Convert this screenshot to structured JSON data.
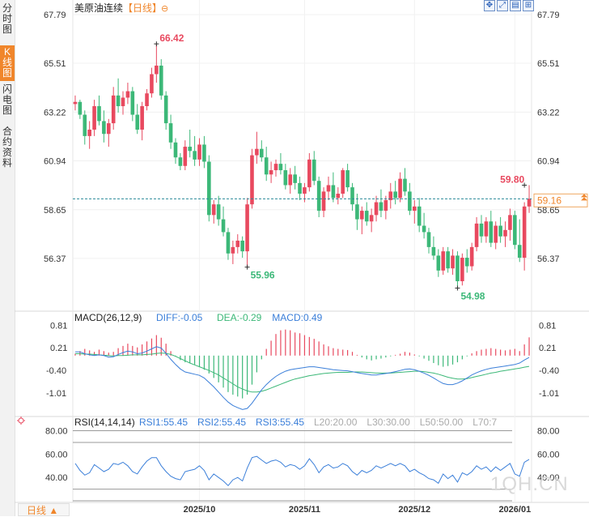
{
  "sidebar": {
    "tabs": [
      {
        "label": "分时图",
        "active": false
      },
      {
        "label": "K线图",
        "active": true
      },
      {
        "label": "闪电图",
        "active": false
      },
      {
        "label": "合约资料",
        "active": false
      }
    ]
  },
  "header": {
    "title": "美原油连续",
    "period_tag": "【日线】",
    "zoom_icon": "zoom-icon"
  },
  "toolbar": {
    "icons": [
      "move-icon",
      "expand-icon",
      "chart-settings-icon",
      "layout-icon"
    ]
  },
  "footer": {
    "period_button": "日线 ▲",
    "watermark": "1QH.CN"
  },
  "colors": {
    "up": "#e8495f",
    "down": "#3cb878",
    "diff_line": "#3b7fd9",
    "dea_line": "#3cb878",
    "rsi_line": "#3b7fd9",
    "accent": "#f0862b"
  },
  "chart_data": [
    {
      "type": "candlestick",
      "name": "main",
      "y_ticks": [
        "67.79",
        "65.51",
        "63.22",
        "60.94",
        "58.65",
        "56.37"
      ],
      "ylim": [
        54.2,
        67.79
      ],
      "x_labels": [
        {
          "label": "2025/10",
          "index": 26
        },
        {
          "label": "2025/11",
          "index": 48
        },
        {
          "label": "2025/12",
          "index": 71
        },
        {
          "label": "2026/01",
          "index": 92
        }
      ],
      "last_price": "59.16",
      "annotations": [
        {
          "label": "66.42",
          "index": 17,
          "value": 66.42,
          "kind": "high"
        },
        {
          "label": "55.96",
          "index": 36,
          "value": 55.96,
          "kind": "low"
        },
        {
          "label": "54.98",
          "index": 80,
          "value": 54.98,
          "kind": "low"
        },
        {
          "label": "59.80",
          "index": 94,
          "value": 59.8,
          "kind": "high"
        }
      ],
      "candles": [
        [
          63.6,
          64.0,
          63.3,
          63.7
        ],
        [
          63.7,
          63.8,
          62.9,
          63.1
        ],
        [
          63.1,
          63.3,
          61.7,
          62.1
        ],
        [
          62.1,
          62.8,
          61.5,
          62.4
        ],
        [
          62.4,
          63.8,
          62.1,
          63.5
        ],
        [
          63.5,
          64.0,
          62.6,
          62.8
        ],
        [
          62.8,
          63.3,
          61.8,
          62.2
        ],
        [
          62.2,
          62.9,
          61.6,
          62.7
        ],
        [
          62.7,
          64.4,
          62.4,
          64.0
        ],
        [
          64.0,
          64.8,
          63.2,
          63.5
        ],
        [
          63.5,
          64.2,
          63.1,
          63.9
        ],
        [
          63.9,
          64.6,
          63.6,
          64.2
        ],
        [
          64.2,
          64.4,
          62.8,
          63.1
        ],
        [
          63.1,
          63.6,
          62.2,
          62.4
        ],
        [
          62.4,
          63.7,
          61.9,
          63.5
        ],
        [
          63.5,
          64.3,
          63.3,
          64.1
        ],
        [
          64.1,
          65.3,
          63.9,
          65.0
        ],
        [
          65.0,
          66.42,
          64.6,
          65.4
        ],
        [
          65.4,
          65.7,
          63.8,
          64.0
        ],
        [
          64.0,
          64.2,
          62.4,
          62.7
        ],
        [
          62.7,
          63.1,
          61.5,
          61.8
        ],
        [
          61.8,
          62.0,
          60.8,
          61.1
        ],
        [
          61.1,
          61.3,
          60.5,
          60.7
        ],
        [
          60.7,
          61.9,
          60.5,
          61.6
        ],
        [
          61.6,
          62.4,
          61.1,
          61.4
        ],
        [
          61.4,
          62.1,
          60.7,
          61.0
        ],
        [
          61.0,
          62.0,
          60.7,
          61.7
        ],
        [
          61.7,
          62.1,
          60.6,
          60.9
        ],
        [
          60.9,
          61.2,
          58.1,
          58.4
        ],
        [
          58.4,
          59.1,
          58.0,
          58.9
        ],
        [
          58.9,
          59.3,
          57.9,
          58.2
        ],
        [
          58.2,
          58.8,
          57.4,
          57.6
        ],
        [
          57.6,
          57.8,
          56.3,
          56.6
        ],
        [
          56.6,
          57.2,
          56.1,
          56.9
        ],
        [
          56.9,
          57.5,
          56.6,
          57.2
        ],
        [
          57.2,
          57.4,
          56.4,
          56.7
        ],
        [
          56.7,
          59.2,
          55.96,
          58.9
        ],
        [
          58.9,
          61.5,
          58.7,
          61.2
        ],
        [
          61.2,
          62.3,
          60.8,
          61.5
        ],
        [
          61.5,
          61.9,
          60.9,
          61.1
        ],
        [
          61.1,
          61.6,
          60.0,
          60.3
        ],
        [
          60.3,
          60.9,
          59.9,
          60.5
        ],
        [
          60.5,
          61.0,
          60.2,
          60.8
        ],
        [
          60.8,
          61.3,
          60.3,
          60.5
        ],
        [
          60.5,
          60.8,
          59.6,
          59.8
        ],
        [
          59.8,
          60.6,
          59.4,
          60.3
        ],
        [
          60.3,
          60.7,
          59.6,
          59.9
        ],
        [
          59.9,
          60.2,
          59.1,
          59.4
        ],
        [
          59.4,
          59.9,
          59.0,
          59.7
        ],
        [
          59.7,
          61.3,
          59.5,
          61.0
        ],
        [
          61.0,
          61.4,
          59.8,
          60.0
        ],
        [
          60.0,
          60.2,
          58.3,
          58.6
        ],
        [
          58.6,
          59.7,
          58.3,
          59.5
        ],
        [
          59.5,
          60.2,
          59.1,
          59.8
        ],
        [
          59.8,
          60.4,
          59.0,
          59.2
        ],
        [
          59.2,
          59.7,
          58.9,
          59.4
        ],
        [
          59.4,
          60.6,
          59.2,
          60.5
        ],
        [
          60.5,
          60.8,
          59.5,
          59.7
        ],
        [
          59.7,
          59.9,
          58.6,
          58.9
        ],
        [
          58.9,
          59.4,
          57.7,
          58.2
        ],
        [
          58.2,
          58.8,
          57.5,
          58.6
        ],
        [
          58.6,
          59.0,
          57.9,
          58.1
        ],
        [
          58.1,
          58.7,
          57.6,
          58.4
        ],
        [
          58.4,
          59.3,
          58.1,
          59.0
        ],
        [
          59.0,
          59.6,
          58.3,
          58.6
        ],
        [
          58.6,
          59.3,
          58.2,
          59.1
        ],
        [
          59.1,
          59.9,
          58.7,
          59.5
        ],
        [
          59.5,
          60.0,
          58.9,
          59.2
        ],
        [
          59.2,
          60.4,
          59.0,
          60.1
        ],
        [
          60.1,
          60.6,
          59.3,
          59.5
        ],
        [
          59.5,
          59.9,
          58.4,
          58.6
        ],
        [
          58.6,
          59.1,
          58.0,
          58.8
        ],
        [
          58.8,
          59.2,
          57.6,
          57.9
        ],
        [
          57.9,
          58.5,
          57.3,
          57.6
        ],
        [
          57.6,
          57.8,
          56.6,
          56.9
        ],
        [
          56.9,
          57.4,
          56.3,
          56.5
        ],
        [
          56.5,
          56.8,
          55.5,
          55.8
        ],
        [
          55.8,
          56.9,
          55.6,
          56.7
        ],
        [
          56.7,
          56.9,
          55.7,
          55.9
        ],
        [
          55.9,
          56.8,
          55.6,
          56.5
        ],
        [
          56.5,
          56.7,
          54.98,
          55.3
        ],
        [
          55.3,
          56.6,
          55.1,
          56.4
        ],
        [
          56.4,
          56.8,
          55.7,
          56.0
        ],
        [
          56.0,
          57.1,
          55.8,
          56.9
        ],
        [
          56.9,
          58.3,
          56.7,
          58.0
        ],
        [
          58.0,
          58.4,
          57.1,
          57.4
        ],
        [
          57.4,
          58.3,
          57.1,
          58.1
        ],
        [
          58.1,
          58.6,
          56.9,
          57.1
        ],
        [
          57.1,
          58.1,
          56.8,
          57.9
        ],
        [
          57.9,
          58.3,
          57.1,
          57.4
        ],
        [
          57.4,
          58.1,
          56.9,
          57.7
        ],
        [
          57.7,
          58.7,
          57.2,
          58.4
        ],
        [
          58.4,
          58.6,
          56.8,
          57.0
        ],
        [
          57.0,
          58.2,
          56.2,
          56.4
        ],
        [
          56.4,
          59.0,
          55.8,
          58.8
        ],
        [
          58.8,
          59.8,
          58.5,
          59.16
        ]
      ]
    },
    {
      "type": "macd",
      "label": "MACD(26,12,9)",
      "legend": [
        {
          "key": "DIFF",
          "text": "DIFF:-0.05"
        },
        {
          "key": "DEA",
          "text": "DEA:-0.29"
        },
        {
          "key": "MACD",
          "text": "MACD:0.49"
        }
      ],
      "y_ticks": [
        "0.81",
        "0.21",
        "-0.40",
        "-1.01"
      ],
      "ylim": [
        -1.55,
        1.15
      ],
      "hist": [
        0.05,
        0.12,
        0.18,
        0.14,
        0.1,
        0.16,
        0.12,
        0.08,
        0.1,
        0.2,
        0.26,
        0.32,
        0.26,
        0.22,
        0.3,
        0.38,
        0.46,
        0.55,
        0.48,
        0.32,
        0.12,
        -0.02,
        -0.12,
        -0.18,
        -0.2,
        -0.24,
        -0.3,
        -0.38,
        -0.48,
        -0.6,
        -0.72,
        -0.86,
        -0.98,
        -1.05,
        -1.1,
        -1.15,
        -1.05,
        -0.78,
        -0.45,
        -0.1,
        0.18,
        0.4,
        0.58,
        0.68,
        0.7,
        0.68,
        0.62,
        0.6,
        0.55,
        0.5,
        0.45,
        0.38,
        0.3,
        0.25,
        0.2,
        0.18,
        0.16,
        0.15,
        0.1,
        0.02,
        -0.05,
        -0.1,
        -0.13,
        -0.1,
        -0.08,
        -0.05,
        -0.02,
        0.02,
        0.05,
        0.1,
        0.08,
        0.03,
        -0.02,
        -0.08,
        -0.14,
        -0.2,
        -0.26,
        -0.3,
        -0.28,
        -0.24,
        -0.18,
        -0.1,
        -0.02,
        0.06,
        0.12,
        0.16,
        0.18,
        0.2,
        0.18,
        0.16,
        0.14,
        0.16,
        0.18,
        0.12,
        0.3,
        0.49
      ],
      "diff": [
        0.1,
        0.1,
        0.05,
        0.02,
        0.0,
        0.02,
        0.0,
        -0.04,
        -0.03,
        0.03,
        0.08,
        0.12,
        0.1,
        0.05,
        0.07,
        0.12,
        0.18,
        0.24,
        0.2,
        0.06,
        -0.1,
        -0.24,
        -0.36,
        -0.44,
        -0.47,
        -0.5,
        -0.53,
        -0.6,
        -0.72,
        -0.84,
        -0.98,
        -1.12,
        -1.25,
        -1.34,
        -1.4,
        -1.45,
        -1.42,
        -1.28,
        -1.1,
        -0.92,
        -0.78,
        -0.66,
        -0.56,
        -0.48,
        -0.42,
        -0.38,
        -0.36,
        -0.34,
        -0.32,
        -0.3,
        -0.3,
        -0.32,
        -0.34,
        -0.36,
        -0.38,
        -0.39,
        -0.4,
        -0.41,
        -0.43,
        -0.46,
        -0.48,
        -0.5,
        -0.52,
        -0.52,
        -0.5,
        -0.48,
        -0.46,
        -0.43,
        -0.4,
        -0.37,
        -0.36,
        -0.38,
        -0.42,
        -0.47,
        -0.53,
        -0.6,
        -0.68,
        -0.75,
        -0.78,
        -0.78,
        -0.74,
        -0.68,
        -0.6,
        -0.52,
        -0.46,
        -0.41,
        -0.37,
        -0.34,
        -0.32,
        -0.3,
        -0.28,
        -0.26,
        -0.24,
        -0.2,
        -0.12,
        -0.05
      ],
      "dea": [
        0.05,
        0.05,
        0.04,
        0.04,
        0.03,
        0.02,
        0.01,
        0.0,
        -0.01,
        0.0,
        0.0,
        0.01,
        0.02,
        0.02,
        0.02,
        0.03,
        0.04,
        0.06,
        0.07,
        0.06,
        0.03,
        -0.02,
        -0.08,
        -0.14,
        -0.2,
        -0.25,
        -0.3,
        -0.35,
        -0.4,
        -0.46,
        -0.52,
        -0.6,
        -0.68,
        -0.76,
        -0.84,
        -0.9,
        -0.95,
        -0.98,
        -0.98,
        -0.96,
        -0.92,
        -0.87,
        -0.82,
        -0.77,
        -0.72,
        -0.67,
        -0.63,
        -0.6,
        -0.57,
        -0.54,
        -0.52,
        -0.5,
        -0.48,
        -0.47,
        -0.46,
        -0.45,
        -0.45,
        -0.45,
        -0.44,
        -0.44,
        -0.44,
        -0.45,
        -0.46,
        -0.47,
        -0.47,
        -0.47,
        -0.47,
        -0.46,
        -0.45,
        -0.44,
        -0.43,
        -0.42,
        -0.42,
        -0.43,
        -0.45,
        -0.47,
        -0.5,
        -0.54,
        -0.58,
        -0.61,
        -0.63,
        -0.63,
        -0.62,
        -0.59,
        -0.56,
        -0.53,
        -0.5,
        -0.47,
        -0.45,
        -0.42,
        -0.4,
        -0.38,
        -0.36,
        -0.34,
        -0.31,
        -0.29
      ]
    },
    {
      "type": "rsi",
      "label": "RSI(14,14,14)",
      "legend": [
        {
          "key": "RSI1",
          "text": "RSI1:55.45"
        },
        {
          "key": "RSI2",
          "text": "RSI2:55.45"
        },
        {
          "key": "RSI3",
          "text": "RSI3:55.45"
        },
        {
          "key": "L20",
          "text": "L20:20.00"
        },
        {
          "key": "L30",
          "text": "L30:30.00"
        },
        {
          "key": "L50",
          "text": "L50:50.00"
        },
        {
          "key": "L70",
          "text": "L70:7"
        }
      ],
      "y_ticks": [
        "80.00",
        "60.00",
        "40.00"
      ],
      "ylim": [
        20,
        88
      ],
      "levels": [
        80,
        70,
        30,
        20
      ],
      "values": [
        52,
        46,
        42,
        44,
        51,
        48,
        45,
        47,
        52,
        51,
        53,
        50,
        45,
        43,
        49,
        54,
        57,
        57,
        50,
        45,
        41,
        39,
        38,
        45,
        46,
        47,
        50,
        46,
        38,
        43,
        40,
        37,
        33,
        38,
        40,
        37,
        48,
        57,
        58,
        55,
        52,
        54,
        55,
        53,
        49,
        51,
        50,
        47,
        50,
        56,
        51,
        44,
        49,
        51,
        48,
        49,
        52,
        50,
        45,
        42,
        46,
        44,
        46,
        50,
        48,
        50,
        52,
        50,
        52,
        50,
        45,
        47,
        44,
        42,
        39,
        38,
        35,
        43,
        39,
        42,
        36,
        44,
        42,
        45,
        50,
        47,
        49,
        45,
        49,
        46,
        49,
        52,
        43,
        41,
        53,
        55.45
      ]
    }
  ]
}
